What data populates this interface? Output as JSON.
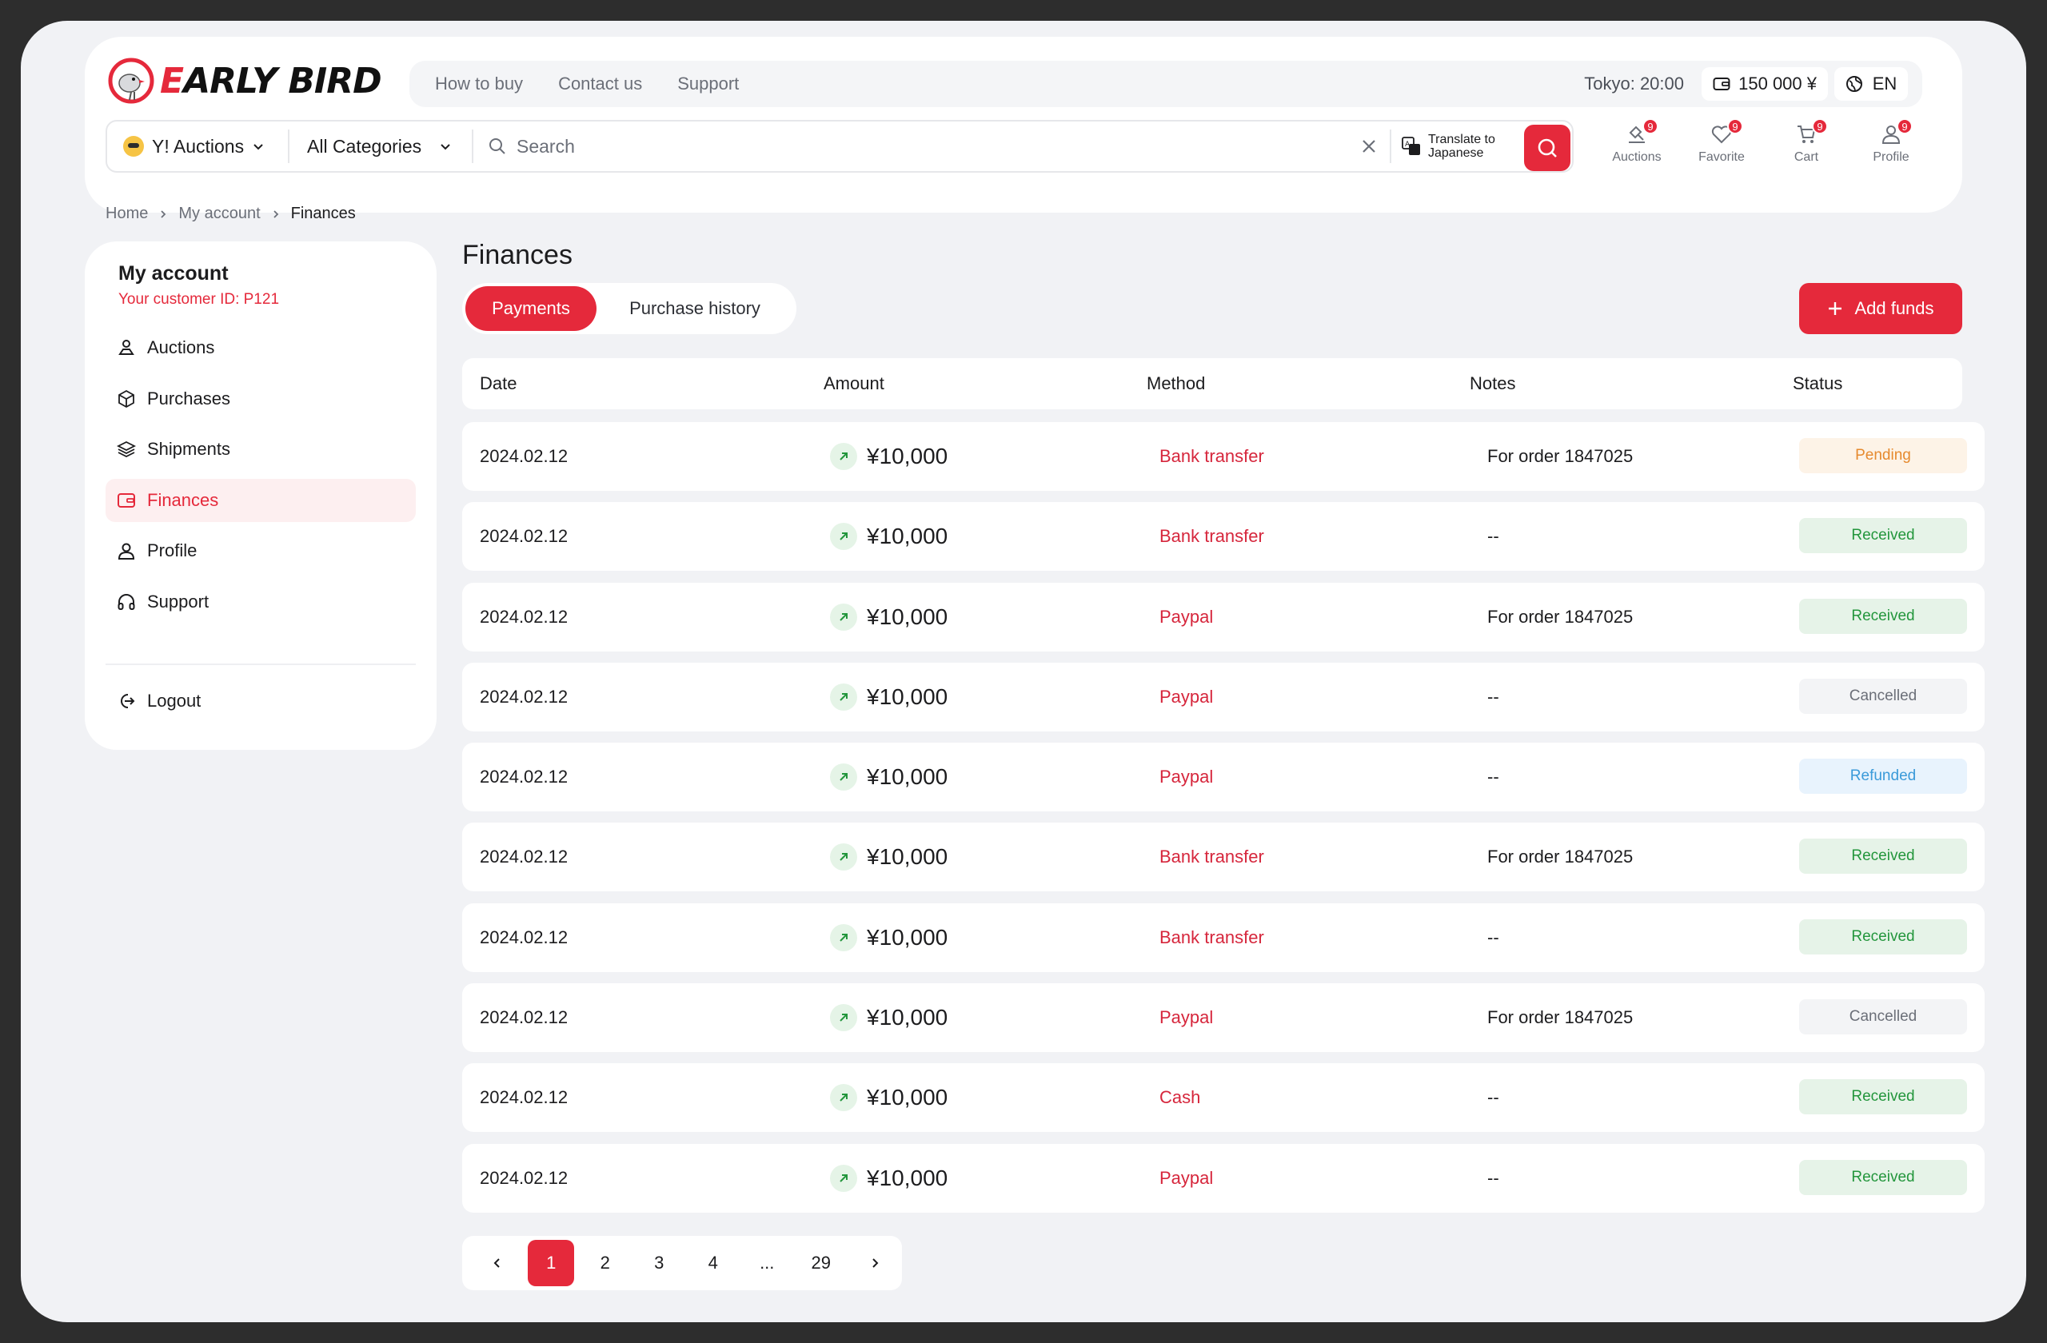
{
  "brand": {
    "name_first": "E",
    "name_rest": "ARLY BIRD"
  },
  "topnav": {
    "links": [
      "How to buy",
      "Contact us",
      "Support"
    ],
    "tokyo_time": "Tokyo: 20:00",
    "balance": "150 000 ¥",
    "language": "EN"
  },
  "search": {
    "source": "Y! Auctions",
    "category": "All Categories",
    "placeholder": "Search",
    "translate": "Translate to Japanese"
  },
  "header_icons": [
    {
      "label": "Auctions",
      "badge": "9"
    },
    {
      "label": "Favorite",
      "badge": "9"
    },
    {
      "label": "Cart",
      "badge": "9"
    },
    {
      "label": "Profile",
      "badge": "9"
    }
  ],
  "breadcrumb": [
    "Home",
    "My account",
    "Finances"
  ],
  "sidebar": {
    "title": "My account",
    "customer_id": "Your customer ID: P121",
    "items": [
      "Auctions",
      "Purchases",
      "Shipments",
      "Finances",
      "Profile",
      "Support"
    ],
    "active": "Finances",
    "logout": "Logout"
  },
  "main": {
    "title": "Finances",
    "tabs": [
      "Payments",
      "Purchase history"
    ],
    "active_tab": "Payments",
    "add_funds": "Add funds",
    "columns": [
      "Date",
      "Amount",
      "Method",
      "Notes",
      "Status"
    ],
    "rows": [
      {
        "date": "2024.02.12",
        "amount": "¥10,000",
        "method": "Bank transfer",
        "notes": "For order 1847025",
        "status": "Pending"
      },
      {
        "date": "2024.02.12",
        "amount": "¥10,000",
        "method": "Bank transfer",
        "notes": "--",
        "status": "Received"
      },
      {
        "date": "2024.02.12",
        "amount": "¥10,000",
        "method": "Paypal",
        "notes": "For order 1847025",
        "status": "Received"
      },
      {
        "date": "2024.02.12",
        "amount": "¥10,000",
        "method": "Paypal",
        "notes": "--",
        "status": "Cancelled"
      },
      {
        "date": "2024.02.12",
        "amount": "¥10,000",
        "method": "Paypal",
        "notes": "--",
        "status": "Refunded"
      },
      {
        "date": "2024.02.12",
        "amount": "¥10,000",
        "method": "Bank transfer",
        "notes": "For order 1847025",
        "status": "Received"
      },
      {
        "date": "2024.02.12",
        "amount": "¥10,000",
        "method": "Bank transfer",
        "notes": "--",
        "status": "Received"
      },
      {
        "date": "2024.02.12",
        "amount": "¥10,000",
        "method": "Paypal",
        "notes": "For order 1847025",
        "status": "Cancelled"
      },
      {
        "date": "2024.02.12",
        "amount": "¥10,000",
        "method": "Cash",
        "notes": "--",
        "status": "Received"
      },
      {
        "date": "2024.02.12",
        "amount": "¥10,000",
        "method": "Paypal",
        "notes": "--",
        "status": "Received"
      }
    ]
  },
  "pagination": {
    "pages": [
      "1",
      "2",
      "3",
      "4",
      "...",
      "29"
    ],
    "current": "1"
  },
  "colors": {
    "accent": "#e5293b",
    "pending": "#e68a2e",
    "received": "#23963c",
    "cancelled": "#6b6f78",
    "refunded": "#3a9ad9"
  }
}
